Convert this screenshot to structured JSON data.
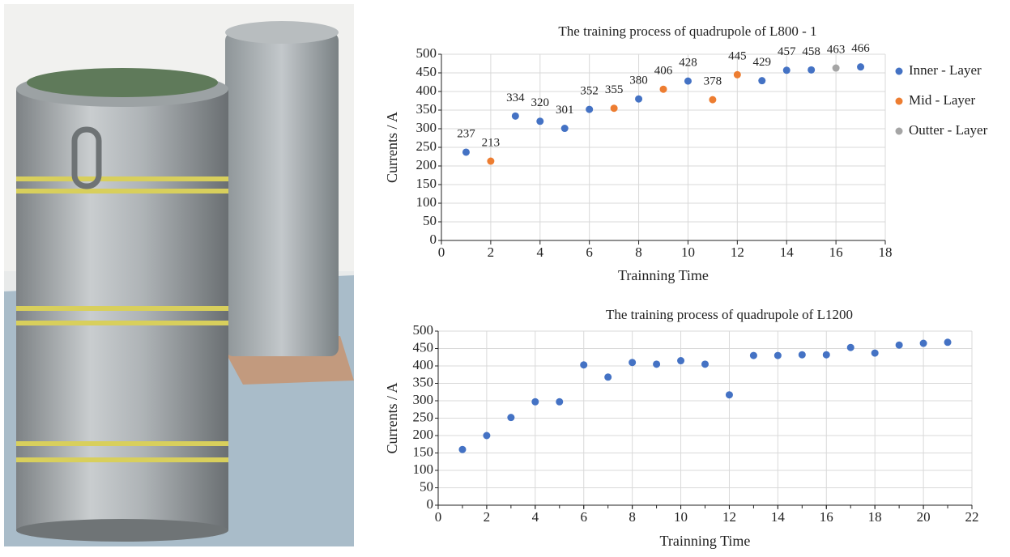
{
  "chart_data": [
    {
      "type": "scatter",
      "title": "The training process of quadrupole of L800 - 1",
      "x_label": "Trainning Time",
      "y_label": "Currents / A",
      "xlim": [
        0,
        18
      ],
      "xticks": [
        0,
        2,
        4,
        6,
        8,
        10,
        12,
        14,
        16,
        18
      ],
      "ylim": [
        0,
        500
      ],
      "yticks": [
        0,
        50,
        100,
        150,
        200,
        250,
        300,
        350,
        400,
        450,
        500
      ],
      "grid": true,
      "legend": "right",
      "data_labels": true,
      "series": [
        {
          "name": "Inner - Layer",
          "color": "#4472c4",
          "x": [
            1,
            3,
            4,
            5,
            6,
            8,
            10,
            13,
            14,
            15,
            17
          ],
          "values": [
            237,
            334,
            320,
            301,
            352,
            380,
            428,
            429,
            457,
            458,
            466
          ]
        },
        {
          "name": "Mid - Layer",
          "color": "#ed7d31",
          "x": [
            2,
            7,
            9,
            11,
            12
          ],
          "values": [
            213,
            355,
            406,
            378,
            445
          ]
        },
        {
          "name": "Outter - Layer",
          "color": "#a5a5a5",
          "x": [
            16
          ],
          "values": [
            463
          ]
        }
      ]
    },
    {
      "type": "scatter",
      "title": "The training process of quadrupole of L1200",
      "x_label": "Trainning Time",
      "y_label": "Currents / A",
      "xlim": [
        0,
        22
      ],
      "xticks": [
        0,
        2,
        4,
        6,
        8,
        10,
        12,
        14,
        16,
        18,
        20,
        22
      ],
      "ylim": [
        0,
        500
      ],
      "yticks": [
        0,
        50,
        100,
        150,
        200,
        250,
        300,
        350,
        400,
        450,
        500
      ],
      "grid": true,
      "color": "#4472c4",
      "x": [
        1,
        2,
        3,
        4,
        5,
        6,
        7,
        8,
        9,
        10,
        11,
        12,
        13,
        14,
        15,
        16,
        17,
        18,
        19,
        20,
        21
      ],
      "values": [
        160,
        200,
        252,
        297,
        297,
        403,
        368,
        410,
        405,
        415,
        405,
        317,
        430,
        430,
        432,
        432,
        453,
        437,
        460,
        465,
        468
      ]
    }
  ]
}
